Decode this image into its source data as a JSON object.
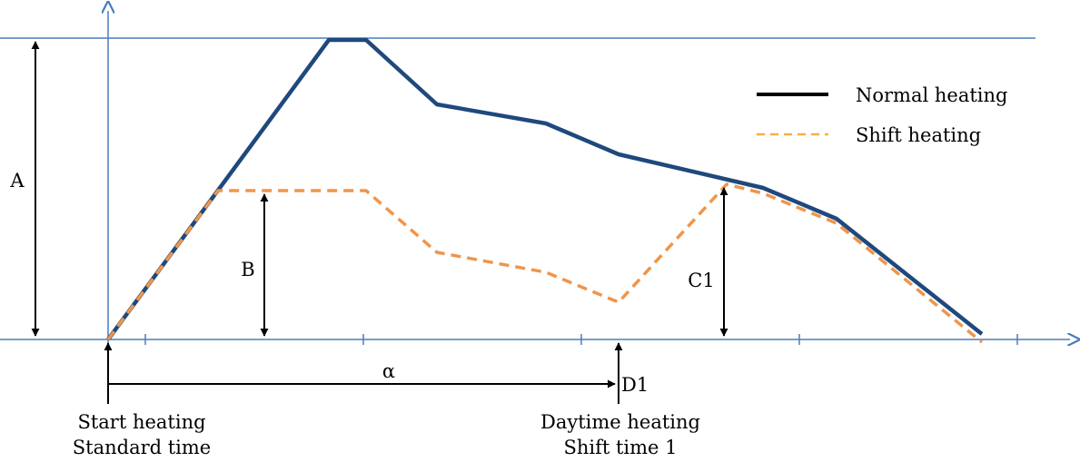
{
  "labels": {
    "a": "A",
    "b": "B",
    "c1": "C1",
    "d1": "D1",
    "alpha": "α"
  },
  "legend": {
    "normal": "Normal heating",
    "shift": "Shift heating"
  },
  "captions": {
    "start_line1": "Start heating",
    "start_line2": "Standard time",
    "daytime_line1": "Daytime heating",
    "daytime_line2": "Shift time 1"
  },
  "colors": {
    "axis": "#4a7ebb",
    "normal_heating": "#1f497d",
    "shift_heating": "#f0954a",
    "legend_dash": "#f4b042",
    "dimension_arrows": "#000000"
  }
}
